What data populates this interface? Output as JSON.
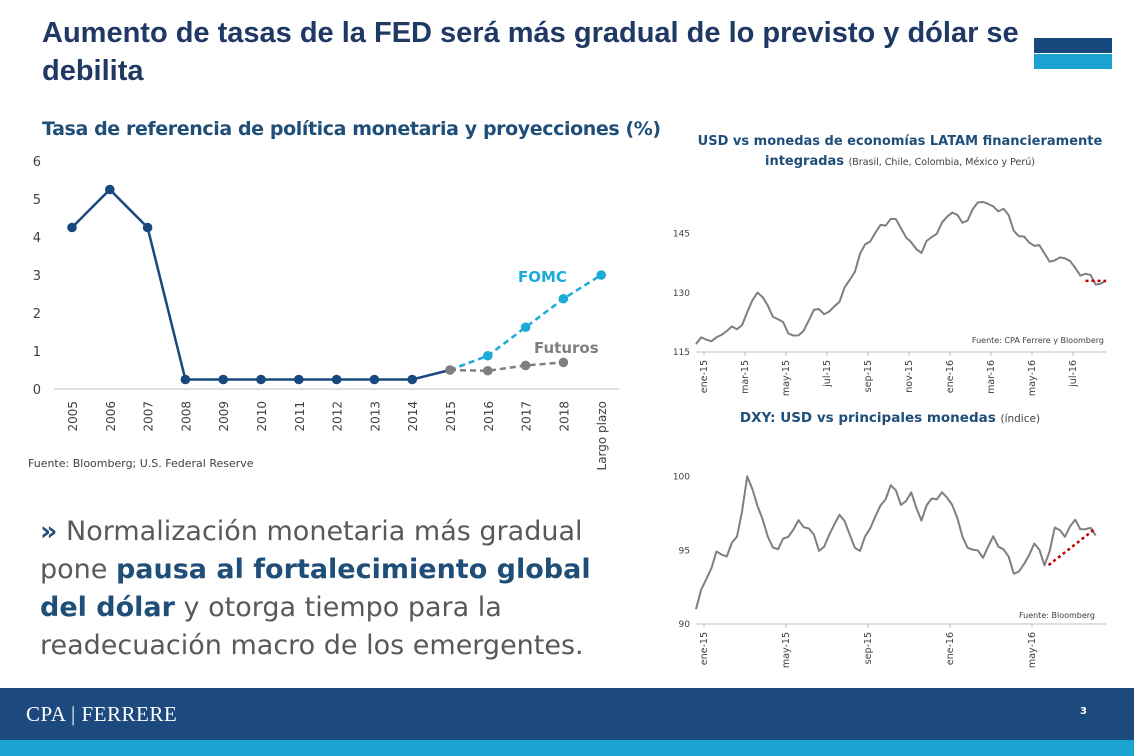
{
  "slide": {
    "title": "Aumento de tasas de la FED será más gradual de lo previsto y dólar se debilita",
    "body": {
      "chevron": "»",
      "part1": " Normalización monetaria más gradual pone ",
      "highlight": "pausa al fortalecimiento global del dólar",
      "part2": " y otorga tiempo para la readecuación macro de los emergentes."
    },
    "footer": {
      "logo": "CPA | FERRERE",
      "page_number": "3"
    },
    "colors": {
      "navy": "#1f3864",
      "footer": "#1c4a7e",
      "accent": "#1aa3d0",
      "fomc": "#1aabd8",
      "line_dark": "#17497f",
      "futuros": "#7f7f7f"
    }
  },
  "chart_data": [
    {
      "type": "line",
      "title": "Tasa de referencia de política monetaria y proyecciones (%)",
      "source": "Fuente: Bloomberg; U.S. Federal Reserve",
      "categories": [
        "2005",
        "2006",
        "2007",
        "2008",
        "2009",
        "2010",
        "2011",
        "2012",
        "2013",
        "2014",
        "2015",
        "2016",
        "2017",
        "2018",
        "Largo plazo"
      ],
      "ylim": [
        0,
        6
      ],
      "yticks": [
        0,
        1,
        2,
        3,
        4,
        5,
        6
      ],
      "series": [
        {
          "values": [
            4.25,
            5.25,
            4.25,
            0.25,
            0.25,
            0.25,
            0.25,
            0.25,
            0.25,
            0.25,
            0.5,
            null,
            null,
            null,
            null
          ]
        },
        {
          "name": "FOMC",
          "values": [
            null,
            null,
            null,
            null,
            null,
            null,
            null,
            null,
            null,
            null,
            0.5,
            0.875,
            1.625,
            2.375,
            3.0
          ]
        },
        {
          "name": "Futuros",
          "values": [
            null,
            null,
            null,
            null,
            null,
            null,
            null,
            null,
            null,
            null,
            0.5,
            0.48,
            0.62,
            0.7,
            null
          ]
        }
      ]
    },
    {
      "type": "line",
      "title": "USD vs monedas de economías LATAM financieramente integradas",
      "subtitle": "(Brasil, Chile, Colombia, México y Perú)",
      "source": "Fuente: CPA Ferrere y Bloomberg",
      "xticks": [
        "ene-15",
        "mar-15",
        "may-15",
        "jul-15",
        "sep-15",
        "nov-15",
        "ene-16",
        "mar-16",
        "may-16",
        "jul-16"
      ],
      "ylim": [
        115,
        155
      ],
      "yticks": [
        115,
        130,
        145
      ],
      "x": [
        0,
        0.5,
        1,
        1.5,
        2,
        2.5,
        3,
        3.5,
        4,
        4.5,
        5,
        5.5,
        6,
        6.5,
        7,
        7.5,
        8,
        8.5,
        9,
        9.5,
        10,
        10.5,
        11,
        11.5,
        12,
        12.5,
        13,
        13.5,
        14,
        14.5,
        15,
        15.5,
        16,
        16.5,
        17,
        17.5,
        18,
        18.5,
        19,
        19.5,
        20
      ],
      "values": [
        117,
        118,
        119,
        120,
        121,
        125,
        130,
        127,
        123,
        120,
        119,
        123,
        126,
        125,
        128,
        133,
        140,
        143,
        147,
        149,
        146,
        143,
        140,
        144,
        148,
        150,
        148,
        151,
        153,
        152,
        151,
        146,
        144,
        142,
        140,
        138,
        139,
        136,
        135,
        132,
        133
      ],
      "trend": {
        "x": [
          19,
          20
        ],
        "values": [
          133,
          133
        ]
      }
    },
    {
      "type": "line",
      "title": "DXY: USD vs principales monedas",
      "subtitle": "(índice)",
      "source": "Fuente: Bloomberg",
      "xticks": [
        "ene-15",
        "may-15",
        "sep-15",
        "ene-16",
        "may-16"
      ],
      "ylim": [
        90,
        101
      ],
      "yticks": [
        90,
        95,
        100
      ],
      "x": [
        0,
        0.5,
        1,
        1.5,
        2,
        2.5,
        3,
        3.5,
        4,
        4.5,
        5,
        5.5,
        6,
        6.5,
        7,
        7.5,
        8,
        8.5,
        9,
        9.5,
        10,
        10.5,
        11,
        11.5,
        12,
        12.5,
        13,
        13.5,
        14,
        14.5,
        15,
        15.5,
        16,
        16.5,
        17,
        17.5,
        18,
        18.5,
        19,
        19.5
      ],
      "values": [
        91,
        93,
        95,
        94.5,
        96,
        100,
        98,
        96,
        95,
        96,
        97,
        96.5,
        95,
        96,
        97.5,
        96,
        95,
        96.5,
        98,
        99.5,
        98,
        99,
        97,
        98.5,
        99,
        98,
        96,
        95,
        94.5,
        96,
        95,
        93.5,
        94,
        95.5,
        94,
        96.5,
        96,
        97,
        96.5,
        96
      ],
      "trend": {
        "x": [
          17.2,
          19.5
        ],
        "values": [
          94,
          96.5
        ]
      }
    }
  ]
}
